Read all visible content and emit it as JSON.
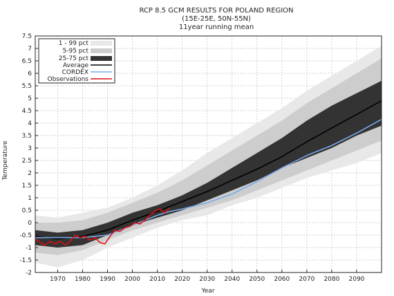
{
  "chart_data": {
    "type": "line",
    "title_lines": [
      "RCP 8.5 GCM RESULTS FOR POLAND REGION",
      "(15E-25E, 50N-55N)",
      "11year running mean"
    ],
    "xlabel": "Year",
    "ylabel": "Temperature",
    "xlim": [
      1961,
      2100
    ],
    "ylim": [
      -2,
      7.5
    ],
    "x_ticks": [
      1970,
      1980,
      1990,
      2000,
      2010,
      2020,
      2030,
      2040,
      2050,
      2060,
      2070,
      2080,
      2090
    ],
    "y_ticks": [
      "-2",
      "-1.5",
      "-1",
      "-0.5",
      "0",
      "0.5",
      "1",
      "1.5",
      "2",
      "2.5",
      "3",
      "3.5",
      "4",
      "4.5",
      "5",
      "5.5",
      "6",
      "6.5",
      "7",
      "7.5"
    ],
    "grid": true,
    "legend_position": "top-left",
    "band_years": [
      1961,
      1970,
      1980,
      1990,
      2000,
      2010,
      2020,
      2030,
      2040,
      2050,
      2060,
      2070,
      2080,
      2090,
      2100
    ],
    "bands": [
      {
        "name": "1 - 99 pct",
        "color": "#e8e8e8",
        "lower": [
          -1.6,
          -1.8,
          -1.5,
          -1.0,
          -0.6,
          -0.2,
          0.1,
          0.3,
          0.7,
          1.0,
          1.4,
          1.8,
          2.1,
          2.4,
          2.8
        ],
        "upper": [
          0.3,
          0.2,
          0.4,
          0.6,
          1.0,
          1.5,
          2.1,
          2.8,
          3.4,
          4.0,
          4.6,
          5.3,
          5.9,
          6.5,
          7.1
        ]
      },
      {
        "name": "5-95 pct",
        "color": "#cdcdcd",
        "lower": [
          -1.2,
          -1.3,
          -1.1,
          -0.7,
          -0.3,
          0.0,
          0.3,
          0.6,
          0.9,
          1.3,
          1.7,
          2.1,
          2.5,
          2.9,
          3.3
        ],
        "upper": [
          0.0,
          0.0,
          0.1,
          0.4,
          0.8,
          1.2,
          1.7,
          2.3,
          2.9,
          3.5,
          4.1,
          4.8,
          5.4,
          6.0,
          6.6
        ]
      },
      {
        "name": "25-75 pct",
        "color": "#333333",
        "lower": [
          -0.9,
          -1.0,
          -0.9,
          -0.5,
          -0.1,
          0.2,
          0.5,
          0.9,
          1.3,
          1.7,
          2.2,
          2.6,
          3.0,
          3.5,
          3.9
        ],
        "upper": [
          -0.3,
          -0.4,
          -0.3,
          0.0,
          0.4,
          0.7,
          1.1,
          1.6,
          2.2,
          2.8,
          3.4,
          4.1,
          4.7,
          5.2,
          5.7
        ]
      }
    ],
    "series": [
      {
        "name": "Average",
        "color": "#000000",
        "width": 1.6,
        "x": [
          1961,
          1970,
          1980,
          1990,
          2000,
          2010,
          2020,
          2030,
          2040,
          2050,
          2060,
          2070,
          2080,
          2090,
          2100
        ],
        "y": [
          -0.55,
          -0.65,
          -0.55,
          -0.3,
          0.1,
          0.45,
          0.85,
          1.25,
          1.7,
          2.15,
          2.65,
          3.25,
          3.8,
          4.35,
          4.9
        ]
      },
      {
        "name": "CORDEX",
        "color": "#78aaec",
        "width": 1.6,
        "x": [
          1961,
          1970,
          1980,
          1990,
          2000,
          2010,
          2015,
          2020,
          2030,
          2040,
          2050,
          2060,
          2070,
          2080,
          2090,
          2100
        ],
        "y": [
          -0.6,
          -0.6,
          -0.6,
          -0.5,
          -0.1,
          0.3,
          0.45,
          0.55,
          0.8,
          1.15,
          1.65,
          2.2,
          2.7,
          3.1,
          3.6,
          4.15
        ]
      },
      {
        "name": "Observations",
        "color": "#dd1111",
        "width": 1.6,
        "x": [
          1961,
          1963,
          1965,
          1967,
          1969,
          1971,
          1973,
          1975,
          1977,
          1979,
          1981,
          1983,
          1985,
          1987,
          1989,
          1991,
          1993,
          1995,
          1997,
          1999,
          2001,
          2003,
          2005,
          2007,
          2009,
          2011,
          2013,
          2015
        ],
        "y": [
          -0.65,
          -0.8,
          -0.9,
          -0.75,
          -0.85,
          -0.75,
          -0.9,
          -0.75,
          -0.5,
          -0.6,
          -0.55,
          -0.7,
          -0.6,
          -0.8,
          -0.85,
          -0.55,
          -0.3,
          -0.35,
          -0.2,
          -0.15,
          0.0,
          -0.05,
          0.1,
          0.3,
          0.45,
          0.55,
          0.4,
          0.6
        ]
      }
    ],
    "legend": [
      "1 - 99 pct",
      "5-95 pct",
      "25-75 pct",
      "Average",
      "CORDEX",
      "Observations"
    ]
  }
}
